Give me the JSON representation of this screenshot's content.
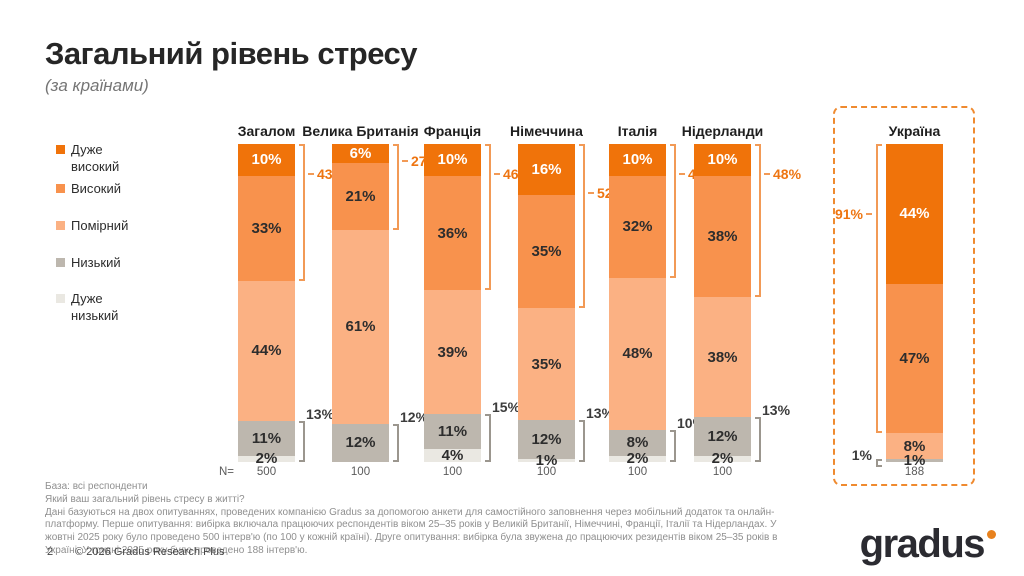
{
  "title": "Загальний рівень стресу",
  "subtitle": "(за країнами)",
  "colors": {
    "very_high": "#F0730A",
    "high": "#F8924D",
    "moderate": "#FBB183",
    "low": "#BDB7AE",
    "very_low": "#EAE8E2",
    "top_bracket_line": "#F29A56",
    "top_bracket_label": "#EE7511",
    "bottom_bracket_line": "#9B968E",
    "bottom_bracket_label": "#3C3C3C",
    "highlight_box": "#EF8A2F",
    "logo_dot": "#E8821E"
  },
  "legend": [
    {
      "label": "Дуже високий",
      "color": "#F0730A"
    },
    {
      "label": "Високий",
      "color": "#F8924D"
    },
    {
      "label": "Помірний",
      "color": "#FBB183"
    },
    {
      "label": "Низький",
      "color": "#BDB7AE"
    },
    {
      "label": "Дуже низький",
      "color": "#EAE8E2"
    }
  ],
  "chart_data": {
    "type": "bar",
    "stacked": true,
    "orientation": "vertical",
    "unit": "%",
    "series_names": [
      "Дуже високий",
      "Високий",
      "Помірний",
      "Низький",
      "Дуже низький"
    ],
    "categories": [
      "Загалом",
      "Велика Британія",
      "Франція",
      "Німеччина",
      "Італія",
      "Нідерланди",
      "Україна"
    ],
    "n_label": "N=",
    "columns": [
      {
        "id": "total",
        "name": "Загалом",
        "values": [
          10,
          33,
          44,
          11,
          2
        ],
        "top_bracket": "43%",
        "bottom_bracket": "13%",
        "n": "500",
        "highlighted": false,
        "bracket_side": "right"
      },
      {
        "id": "great-britain",
        "name": "Велика Британія",
        "values": [
          6,
          21,
          61,
          12,
          0
        ],
        "top_bracket": "27%",
        "bottom_bracket": "12%",
        "n": "100",
        "highlighted": false,
        "bracket_side": "right"
      },
      {
        "id": "france",
        "name": "Франція",
        "values": [
          10,
          36,
          39,
          11,
          4
        ],
        "top_bracket": "46%",
        "bottom_bracket": "15%",
        "n": "100",
        "highlighted": false,
        "bracket_side": "right"
      },
      {
        "id": "germany",
        "name": "Німеччина",
        "values": [
          16,
          35,
          35,
          12,
          1
        ],
        "top_bracket": "52%",
        "bottom_bracket": "13%",
        "n": "100",
        "highlighted": false,
        "bracket_side": "right"
      },
      {
        "id": "italy",
        "name": "Італія",
        "values": [
          10,
          32,
          48,
          8,
          2
        ],
        "top_bracket": "42%",
        "bottom_bracket": "10%",
        "n": "100",
        "highlighted": false,
        "bracket_side": "right"
      },
      {
        "id": "netherlands",
        "name": "Нідерланди",
        "values": [
          10,
          38,
          38,
          12,
          2
        ],
        "top_bracket": "48%",
        "bottom_bracket": "13%",
        "n": "100",
        "highlighted": false,
        "bracket_side": "right"
      },
      {
        "id": "ukraine",
        "name": "Україна",
        "values": [
          44,
          47,
          8,
          1,
          0
        ],
        "top_bracket": "91%",
        "bottom_bracket": "1%",
        "n": "188",
        "highlighted": true,
        "bracket_side": "left"
      }
    ]
  },
  "notes": {
    "base": "База: всі респонденти",
    "question": "Який ваш загальний рівень стресу в житті?",
    "methodology": "Дані базуються на двох опитуваннях, проведених компанією Gradus за допомогою анкети для самостійного заповнення через мобільний додаток та онлайн-платформу. Перше опитування: вибірка включала працюючих респондентів віком 25–35 років у Великій Британії, Німеччині, Франції, Італії та Нідерландах. У жовтні 2025 року було проведено 500 інтерв'ю (по 100 у кожній країні). Друге опитування: вибірка була звужена до працюючих резидентів віком 25–35 років в Україні. У грудні 2025 року було проведено 188 інтерв'ю."
  },
  "footer": {
    "page": "2",
    "copyright": "© 2026 Gradus Research Plus"
  },
  "logo": {
    "text": "gradus"
  }
}
